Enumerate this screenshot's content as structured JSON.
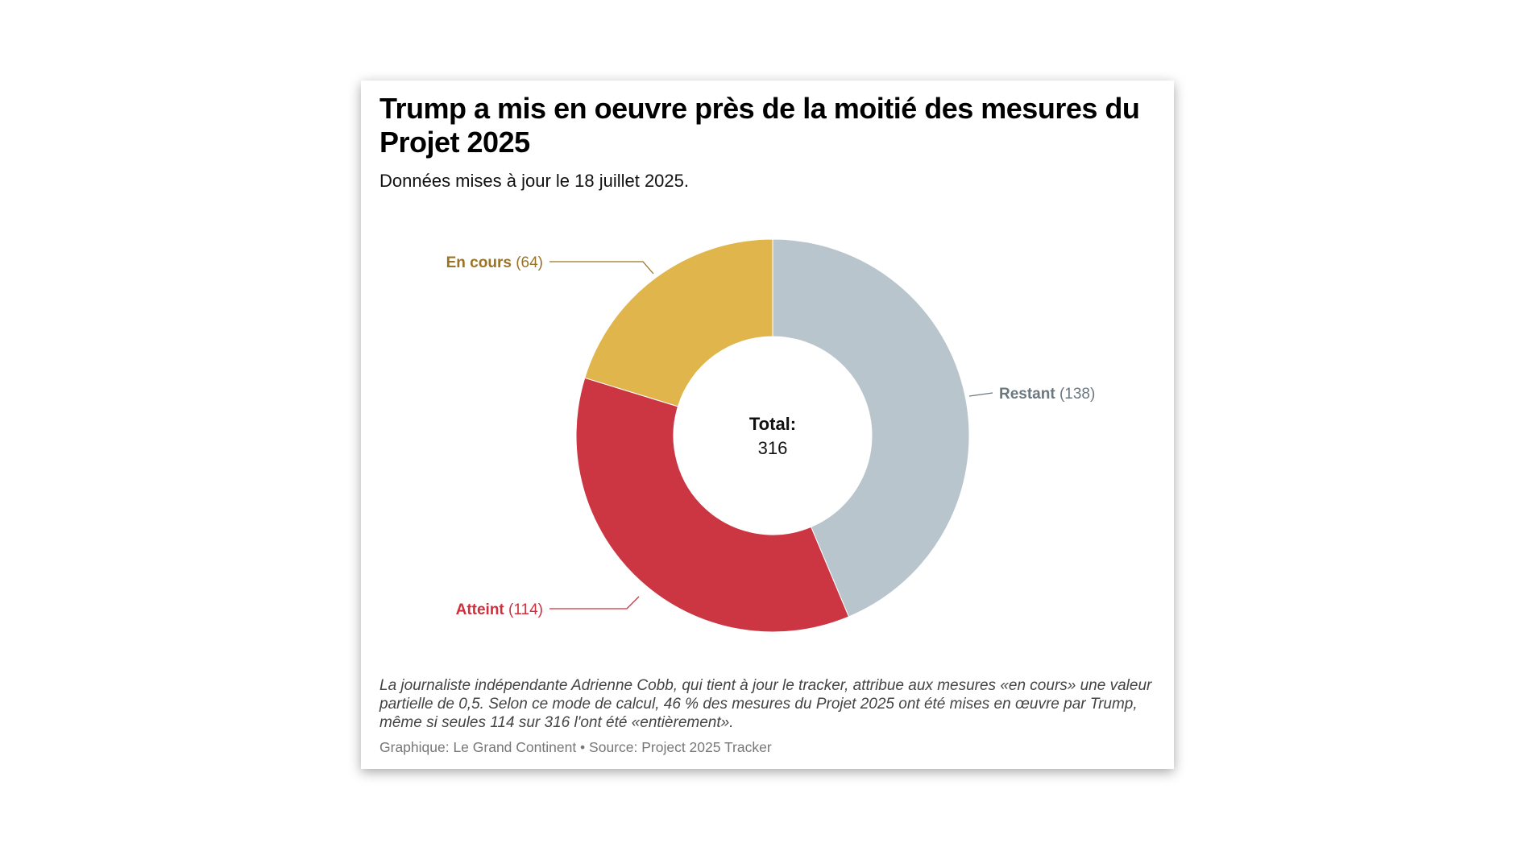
{
  "header": {
    "title": "Trump a mis en oeuvre près de la moitié des mesures du Projet 2025",
    "subtitle": "Données mises à jour le 18 juillet 2025."
  },
  "chart_data": {
    "type": "pie",
    "variant": "donut",
    "title": "Trump a mis en oeuvre près de la moitié des mesures du Projet 2025",
    "subtitle": "Données mises à jour le 18 juillet 2025.",
    "slices": [
      {
        "label": "Restant",
        "value": 138,
        "value_text": "(138)",
        "color": "#b8c5cc",
        "label_color": "#6b7880"
      },
      {
        "label": "Atteint",
        "value": 114,
        "value_text": "(114)",
        "color": "#cc3643",
        "label_color": "#d02f3d"
      },
      {
        "label": "En cours",
        "value": 64,
        "value_text": "(64)",
        "color": "#e0b54c",
        "label_color": "#9a7326"
      }
    ],
    "center_label": "Total:",
    "center_value": "316"
  },
  "footer": {
    "note": "La journaliste indépendante Adrienne Cobb, qui tient à jour le tracker, attribue aux mesures «en cours» une valeur partielle de 0,5. Selon ce mode de calcul, 46 % des mesures du Projet 2025 ont été mises en œuvre par Trump, même si seules 114 sur 316 l'ont été «entièrement».",
    "credit": "Graphique: Le Grand Continent • Source: Project 2025 Tracker"
  }
}
